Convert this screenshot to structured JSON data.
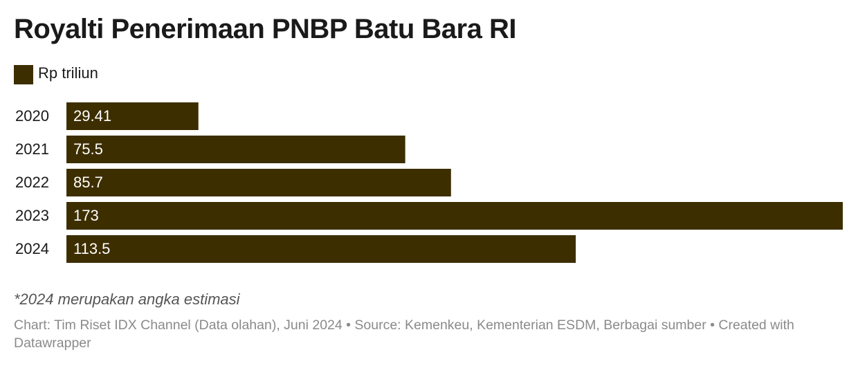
{
  "chart_data": {
    "type": "bar",
    "orientation": "horizontal",
    "title": "Royalti Penerimaan PNBP Batu Bara RI",
    "categories": [
      "2020",
      "2021",
      "2022",
      "2023",
      "2024"
    ],
    "series": [
      {
        "name": "Rp triliun",
        "color": "#3d2e00",
        "values": [
          29.41,
          75.5,
          85.7,
          173,
          113.5
        ]
      }
    ],
    "note": "*2024 merupakan angka estimasi",
    "source": "Chart: Tim Riset IDX Channel (Data olahan), Juni 2024 • Source: Kemenkeu, Kementerian ESDM, Berbagai sumber • Created with Datawrapper"
  }
}
